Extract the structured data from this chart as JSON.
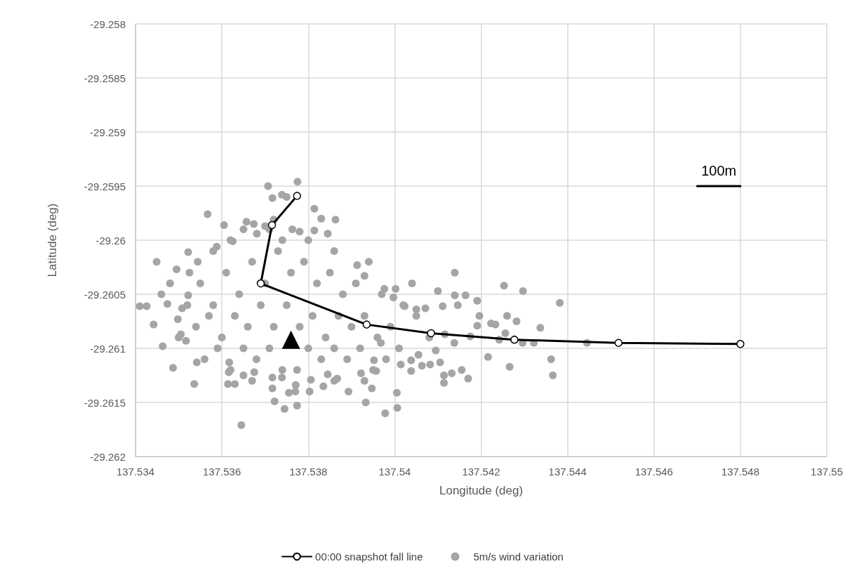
{
  "chart_data": {
    "type": "scatter",
    "xlabel": "Longitude (deg)",
    "ylabel": "Latitude (deg)",
    "xlim": [
      137.534,
      137.55
    ],
    "xticks": [
      137.534,
      137.536,
      137.538,
      137.54,
      137.542,
      137.544,
      137.546,
      137.548,
      137.55
    ],
    "ylim": [
      -29.262,
      -29.258
    ],
    "yticks": [
      -29.262,
      -29.2615,
      -29.261,
      -29.2605,
      -29.26,
      -29.2595,
      -29.259,
      -29.2585,
      -29.258
    ],
    "grid": true,
    "legend": "bottom",
    "annotations": [
      {
        "text": "100m",
        "x": 137.5475,
        "y": -29.2595
      }
    ],
    "series": [
      {
        "name": "00:00 snapshot fall line",
        "type": "line",
        "color": "#000000",
        "marker": "circle",
        "line_style": "solid",
        "x": [
          137.53774,
          137.53716,
          137.5369,
          137.53935,
          137.54084,
          137.54277,
          137.54518,
          137.548
        ],
        "values": [
          -29.25959,
          -29.25986,
          -29.2604,
          -29.26078,
          -29.26086,
          -29.26092,
          -29.26095,
          -29.26096
        ]
      },
      {
        "name": "5m/s wind variation",
        "color": "#a5a5a5",
        "marker": "circle",
        "x": [
          137.53775,
          137.53707,
          137.53717,
          137.53739,
          137.5375,
          137.53567,
          137.53814,
          137.5383,
          137.53863,
          137.53605,
          137.53657,
          137.53674,
          137.537,
          137.5372,
          137.53681,
          137.53763,
          137.5378,
          137.53814,
          137.53845,
          137.53625,
          137.53522,
          137.53449,
          137.53495,
          137.53525,
          137.53544,
          137.53588,
          137.53913,
          137.5346,
          137.53426,
          137.53474,
          137.53442,
          137.53508,
          137.53522,
          137.53498,
          137.5393,
          137.5341,
          137.54139,
          137.54253,
          137.54297,
          137.54382,
          137.541,
          137.54139,
          137.54164,
          137.54191,
          137.53976,
          137.54002,
          137.53997,
          137.54023,
          137.5405,
          137.54071,
          137.54111,
          137.54146,
          137.54196,
          137.5426,
          137.54282,
          137.54223,
          137.54337,
          137.54296,
          137.54322,
          137.54445,
          137.54216,
          137.54266,
          137.54362,
          137.54366,
          137.54242,
          137.54256,
          137.5417,
          137.54155,
          137.54132,
          137.54114,
          137.54114,
          137.54105,
          137.54082,
          137.54063,
          137.54038,
          137.54014,
          137.54038,
          137.54005,
          137.54006,
          137.53978,
          137.53957,
          137.53947,
          137.53952,
          137.54055,
          137.54095,
          137.54138,
          137.54175,
          137.54191,
          137.54233,
          137.54116,
          137.53968,
          137.53463,
          137.53487,
          137.53536,
          137.53542,
          137.53505,
          137.53517,
          137.53616,
          137.53614,
          137.5363,
          137.53645,
          137.5365,
          137.53675,
          137.53717,
          137.53722,
          137.53745,
          137.53774,
          137.53755,
          137.53771,
          137.53803,
          137.53739,
          137.53717,
          137.53774,
          137.53806,
          137.53835,
          137.53867,
          137.53893,
          137.53922,
          137.53933,
          137.53845,
          137.53617,
          137.5355,
          137.5358,
          137.5361,
          137.5364,
          137.5367,
          137.537,
          137.5373,
          137.5376,
          137.5379,
          137.5382,
          137.5385,
          137.5388,
          137.5391,
          137.5354,
          137.5357,
          137.536,
          137.5363,
          137.5366,
          137.5369,
          137.5372,
          137.5375,
          137.5378,
          137.5381,
          137.5384,
          137.5387,
          137.539,
          137.5393,
          137.5396,
          137.5399,
          137.5356,
          137.5359,
          137.5362,
          137.5365,
          137.5368,
          137.5371,
          137.5374,
          137.538,
          137.5383,
          137.5386,
          137.5389,
          137.5392,
          137.5395,
          137.5398,
          137.5401,
          137.5362,
          137.5365,
          137.5371,
          137.5374,
          137.538,
          137.5386,
          137.5358,
          137.5352,
          137.535,
          137.5348,
          137.5394,
          137.5397,
          137.5402,
          137.5405,
          137.5404,
          137.5408,
          137.5367,
          137.5377,
          137.5386,
          137.5393
        ],
        "values": [
          -29.25946,
          -29.2595,
          -29.25961,
          -29.25958,
          -29.2596,
          -29.25976,
          -29.25971,
          -29.2598,
          -29.25981,
          -29.25986,
          -29.25983,
          -29.25985,
          -29.25987,
          -29.25981,
          -29.25994,
          -29.2599,
          -29.25992,
          -29.25991,
          -29.25994,
          -29.26001,
          -29.26011,
          -29.2602,
          -29.26027,
          -29.2603,
          -29.2602,
          -29.26006,
          -29.26023,
          -29.2605,
          -29.26061,
          -29.26059,
          -29.26078,
          -29.26063,
          -29.26051,
          -29.26073,
          -29.26033,
          -29.26061,
          -29.2603,
          -29.26042,
          -29.26047,
          -29.26058,
          -29.26047,
          -29.26051,
          -29.26051,
          -29.26056,
          -29.26045,
          -29.26045,
          -29.26053,
          -29.26061,
          -29.26064,
          -29.26063,
          -29.26061,
          -29.2606,
          -29.2607,
          -29.2607,
          -29.26075,
          -29.26077,
          -29.26081,
          -29.26095,
          -29.26095,
          -29.26095,
          -29.26108,
          -29.26117,
          -29.2611,
          -29.26125,
          -29.26092,
          -29.26086,
          -29.26128,
          -29.2612,
          -29.26123,
          -29.26132,
          -29.26125,
          -29.26113,
          -29.26115,
          -29.26116,
          -29.26121,
          -29.26115,
          -29.26111,
          -29.26141,
          -29.26155,
          -29.2616,
          -29.26121,
          -29.26137,
          -29.26111,
          -29.26106,
          -29.26102,
          -29.26095,
          -29.26089,
          -29.26079,
          -29.26078,
          -29.26087,
          -29.26095,
          -29.26098,
          -29.26118,
          -29.26133,
          -29.26113,
          -29.26087,
          -29.26093,
          -29.26122,
          -29.26133,
          -29.26133,
          -29.26171,
          -29.26125,
          -29.26122,
          -29.26137,
          -29.26149,
          -29.26156,
          -29.26153,
          -29.26141,
          -29.26134,
          -29.2614,
          -29.26127,
          -29.26127,
          -29.2612,
          -29.26129,
          -29.26135,
          -29.26128,
          -29.2614,
          -29.26123,
          -29.2615,
          -29.26124,
          -29.26113,
          -29.2604,
          -29.2606,
          -29.2603,
          -29.2605,
          -29.2602,
          -29.2604,
          -29.2601,
          -29.2603,
          -29.2602,
          -29.2604,
          -29.2603,
          -29.2605,
          -29.2604,
          -29.2608,
          -29.2607,
          -29.2609,
          -29.2607,
          -29.2608,
          -29.2606,
          -29.2608,
          -29.2606,
          -29.2608,
          -29.2607,
          -29.2609,
          -29.2607,
          -29.2608,
          -29.2607,
          -29.2609,
          -29.2608,
          -29.2611,
          -29.261,
          -29.2612,
          -29.261,
          -29.2611,
          -29.261,
          -29.2612,
          -29.261,
          -29.2611,
          -29.261,
          -29.2611,
          -29.261,
          -29.2612,
          -29.2611,
          -29.261,
          -29.26,
          -29.2599,
          -29.2599,
          -29.26,
          -29.26,
          -29.2601,
          -29.2601,
          -29.2606,
          -29.2609,
          -29.2604,
          -29.2602,
          -29.2605,
          -29.2606,
          -29.2607,
          -29.2604,
          -29.2609,
          -29.2613,
          -29.2614,
          -29.2613,
          -29.2613
        ]
      },
      {
        "color": "#000000",
        "marker": "triangle",
        "x": [
          137.5376
        ],
        "values": [
          -29.26092
        ]
      },
      {
        "type": "line",
        "color": "#000000",
        "marker": "none",
        "line_style": "solid",
        "x": [
          137.547,
          137.548
        ],
        "values": [
          -29.2595,
          -29.2595
        ]
      }
    ]
  }
}
